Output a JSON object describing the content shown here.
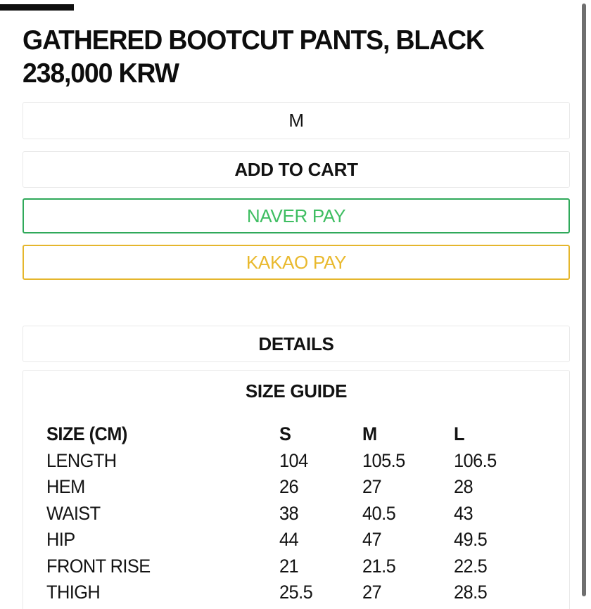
{
  "product": {
    "title": "GATHERED BOOTCUT PANTS, BLACK",
    "price": "238,000 KRW"
  },
  "actions": {
    "size_selected": "M",
    "add_to_cart_label": "ADD TO CART",
    "naver_pay_label": "NAVER PAY",
    "kakao_pay_label": "KAKAO PAY"
  },
  "accordions": {
    "details_label": "DETAILS",
    "size_guide_label": "SIZE GUIDE"
  },
  "size_table": {
    "columns": [
      "SIZE (CM)",
      "S",
      "M",
      "L"
    ],
    "rows": [
      {
        "label": "LENGTH",
        "values": [
          "104",
          "105.5",
          "106.5"
        ]
      },
      {
        "label": "HEM",
        "values": [
          "26",
          "27",
          "28"
        ]
      },
      {
        "label": "WAIST",
        "values": [
          "38",
          "40.5",
          "43"
        ]
      },
      {
        "label": "HIP",
        "values": [
          "44",
          "47",
          "49.5"
        ]
      },
      {
        "label": "FRONT RISE",
        "values": [
          "21",
          "21.5",
          "22.5"
        ]
      },
      {
        "label": "THIGH",
        "values": [
          "25.5",
          "27",
          "28.5"
        ]
      }
    ]
  },
  "colors": {
    "naver_border": "#2fa95a",
    "naver_text": "#3fbe62",
    "kakao_border": "#e5b62c",
    "kakao_text": "#e9b92e",
    "text_black": "#0d0d0d",
    "box_border_gray": "#e9e9e9",
    "scrollbar_gray": "#6f6f6f"
  }
}
